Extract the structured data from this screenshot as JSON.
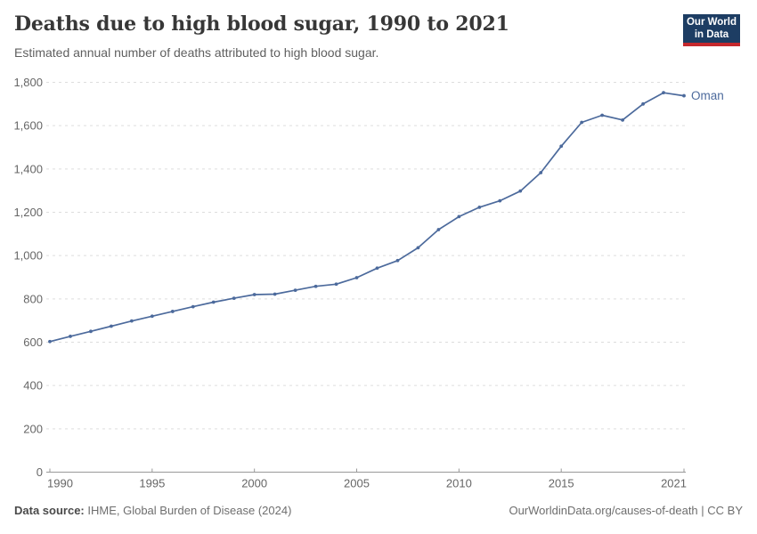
{
  "header": {
    "title": "Deaths due to high blood sugar, 1990 to 2021",
    "subtitle": "Estimated annual number of deaths attributed to high blood sugar."
  },
  "logo": {
    "line1": "Our World",
    "line2": "in Data"
  },
  "chart_data": {
    "type": "line",
    "title": "Deaths due to high blood sugar, 1990 to 2021",
    "xlabel": "",
    "ylabel": "",
    "xlim": [
      1990,
      2021
    ],
    "ylim": [
      0,
      1800
    ],
    "x_ticks": [
      1990,
      1995,
      2000,
      2005,
      2010,
      2015,
      2021
    ],
    "y_ticks": [
      0,
      200,
      400,
      600,
      800,
      1000,
      1200,
      1400,
      1600,
      1800
    ],
    "grid": "horizontal-dashed",
    "legend_position": "end-of-line-label",
    "series": [
      {
        "name": "Oman",
        "color": "#4C6A9C",
        "x": [
          1990,
          1991,
          1992,
          1993,
          1994,
          1995,
          1996,
          1997,
          1998,
          1999,
          2000,
          2001,
          2002,
          2003,
          2004,
          2005,
          2006,
          2007,
          2008,
          2009,
          2010,
          2011,
          2012,
          2013,
          2014,
          2015,
          2016,
          2017,
          2018,
          2019,
          2020,
          2021
        ],
        "values": [
          603,
          627,
          650,
          674,
          698,
          720,
          742,
          764,
          785,
          803,
          820,
          822,
          840,
          858,
          868,
          898,
          942,
          977,
          1036,
          1120,
          1180,
          1223,
          1253,
          1298,
          1383,
          1505,
          1615,
          1648,
          1626,
          1700,
          1752,
          1738
        ]
      }
    ]
  },
  "footer": {
    "source_label": "Data source:",
    "source_text": " IHME, Global Burden of Disease (2024)",
    "credit": "OurWorldinData.org/causes-of-death | CC BY"
  },
  "colors": {
    "line": "#4C6A9C",
    "grid": "#dddddd",
    "axis": "#999999",
    "tick_label": "#666666",
    "logo_bg": "#1d3d63",
    "logo_accent": "#c5282d"
  }
}
